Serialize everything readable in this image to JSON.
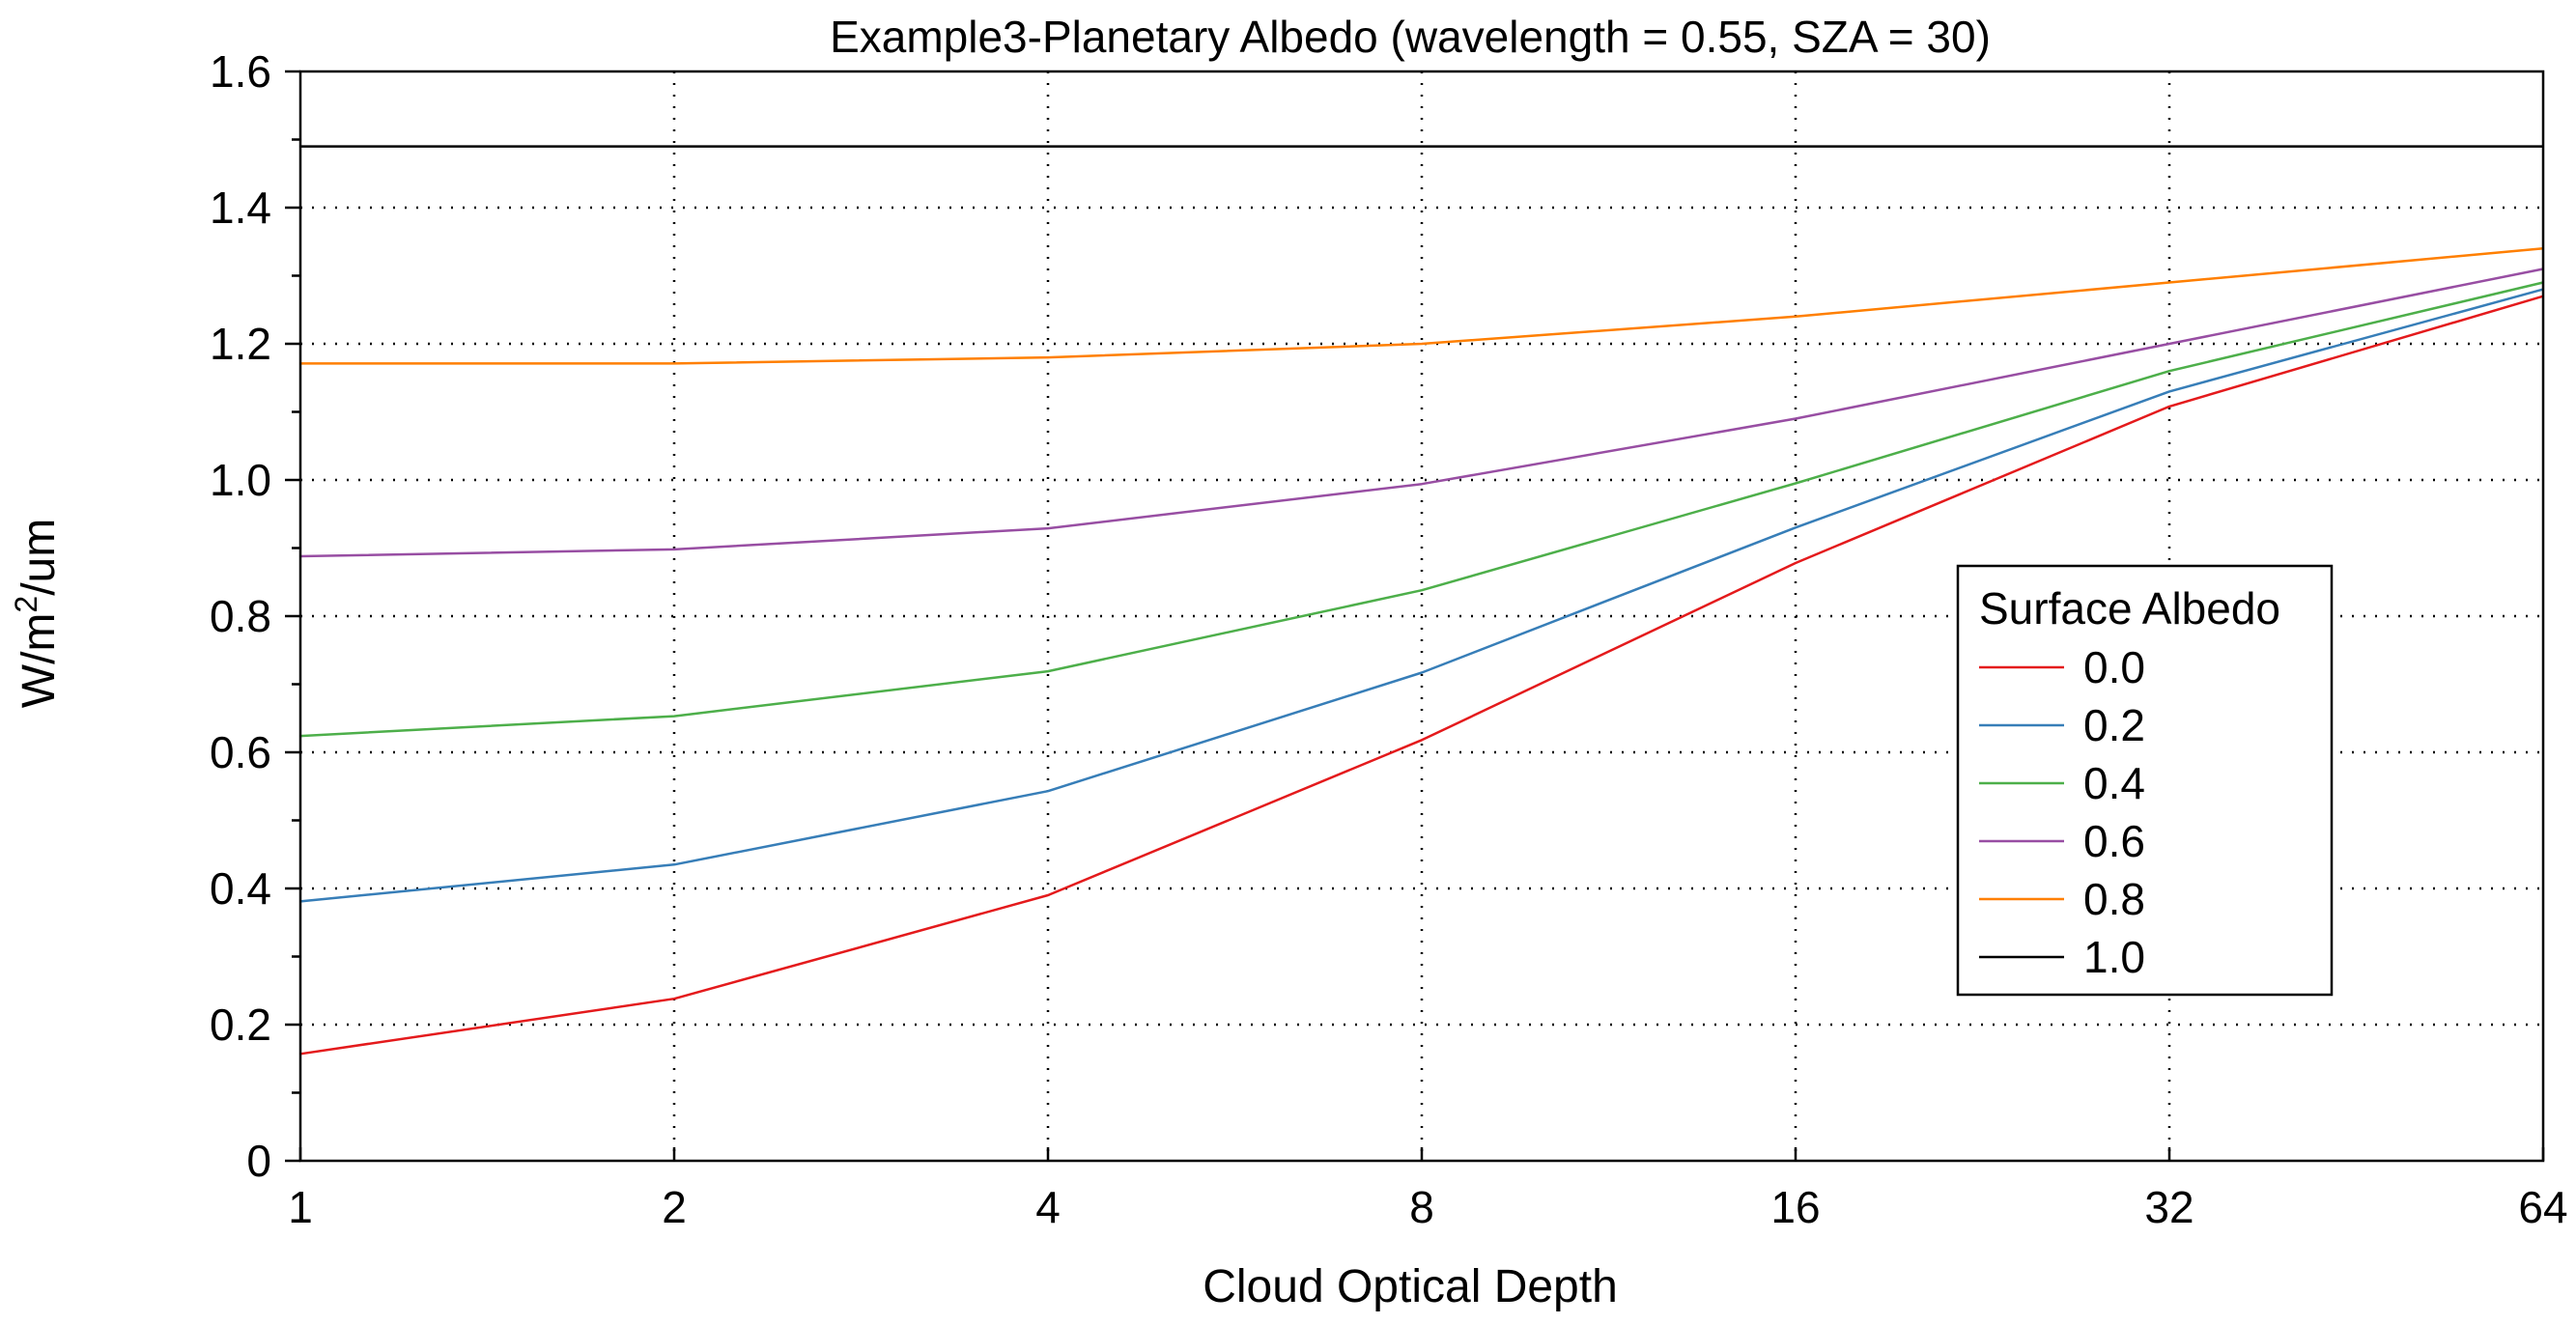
{
  "chart_data": {
    "type": "line",
    "title": "Example3-Planetary Albedo (wavelength = 0.55, SZA = 30)",
    "xlabel": "Cloud Optical Depth",
    "ylabel": "W/m2/um",
    "ylabel_parts": {
      "base": "W/m",
      "sup": "2",
      "rest": "/um"
    },
    "x_scale": "log2",
    "x": [
      1,
      2,
      4,
      8,
      16,
      32,
      64
    ],
    "x_tick_labels": [
      "1",
      "2",
      "4",
      "8",
      "16",
      "32",
      "64"
    ],
    "xlim": [
      1,
      64
    ],
    "ylim": [
      0,
      1.6
    ],
    "y_ticks": [
      0,
      0.2,
      0.4,
      0.6,
      0.8,
      1.0,
      1.2,
      1.4,
      1.6
    ],
    "y_tick_labels": [
      "0",
      "0.2",
      "0.4",
      "0.6",
      "0.8",
      "1.0",
      "1.2",
      "1.4",
      "1.6"
    ],
    "grid": "dotted",
    "legend": {
      "title": "Surface Albedo",
      "placement": "right"
    },
    "series": [
      {
        "name": "0.0",
        "color": "#e41a1c",
        "values": [
          0.157,
          0.238,
          0.39,
          0.618,
          0.878,
          1.108,
          1.27
        ]
      },
      {
        "name": "0.2",
        "color": "#377eb8",
        "values": [
          0.381,
          0.435,
          0.543,
          0.717,
          0.93,
          1.13,
          1.28
        ]
      },
      {
        "name": "0.4",
        "color": "#4daf4a",
        "values": [
          0.624,
          0.653,
          0.719,
          0.838,
          0.995,
          1.16,
          1.29
        ]
      },
      {
        "name": "0.6",
        "color": "#984ea3",
        "values": [
          0.888,
          0.898,
          0.929,
          0.994,
          1.09,
          1.2,
          1.31
        ]
      },
      {
        "name": "0.8",
        "color": "#ff7f00",
        "values": [
          1.171,
          1.171,
          1.18,
          1.2,
          1.24,
          1.29,
          1.34
        ]
      },
      {
        "name": "1.0",
        "color": "#000000",
        "values": [
          1.49,
          1.49,
          1.49,
          1.49,
          1.49,
          1.49,
          1.49
        ]
      }
    ]
  }
}
